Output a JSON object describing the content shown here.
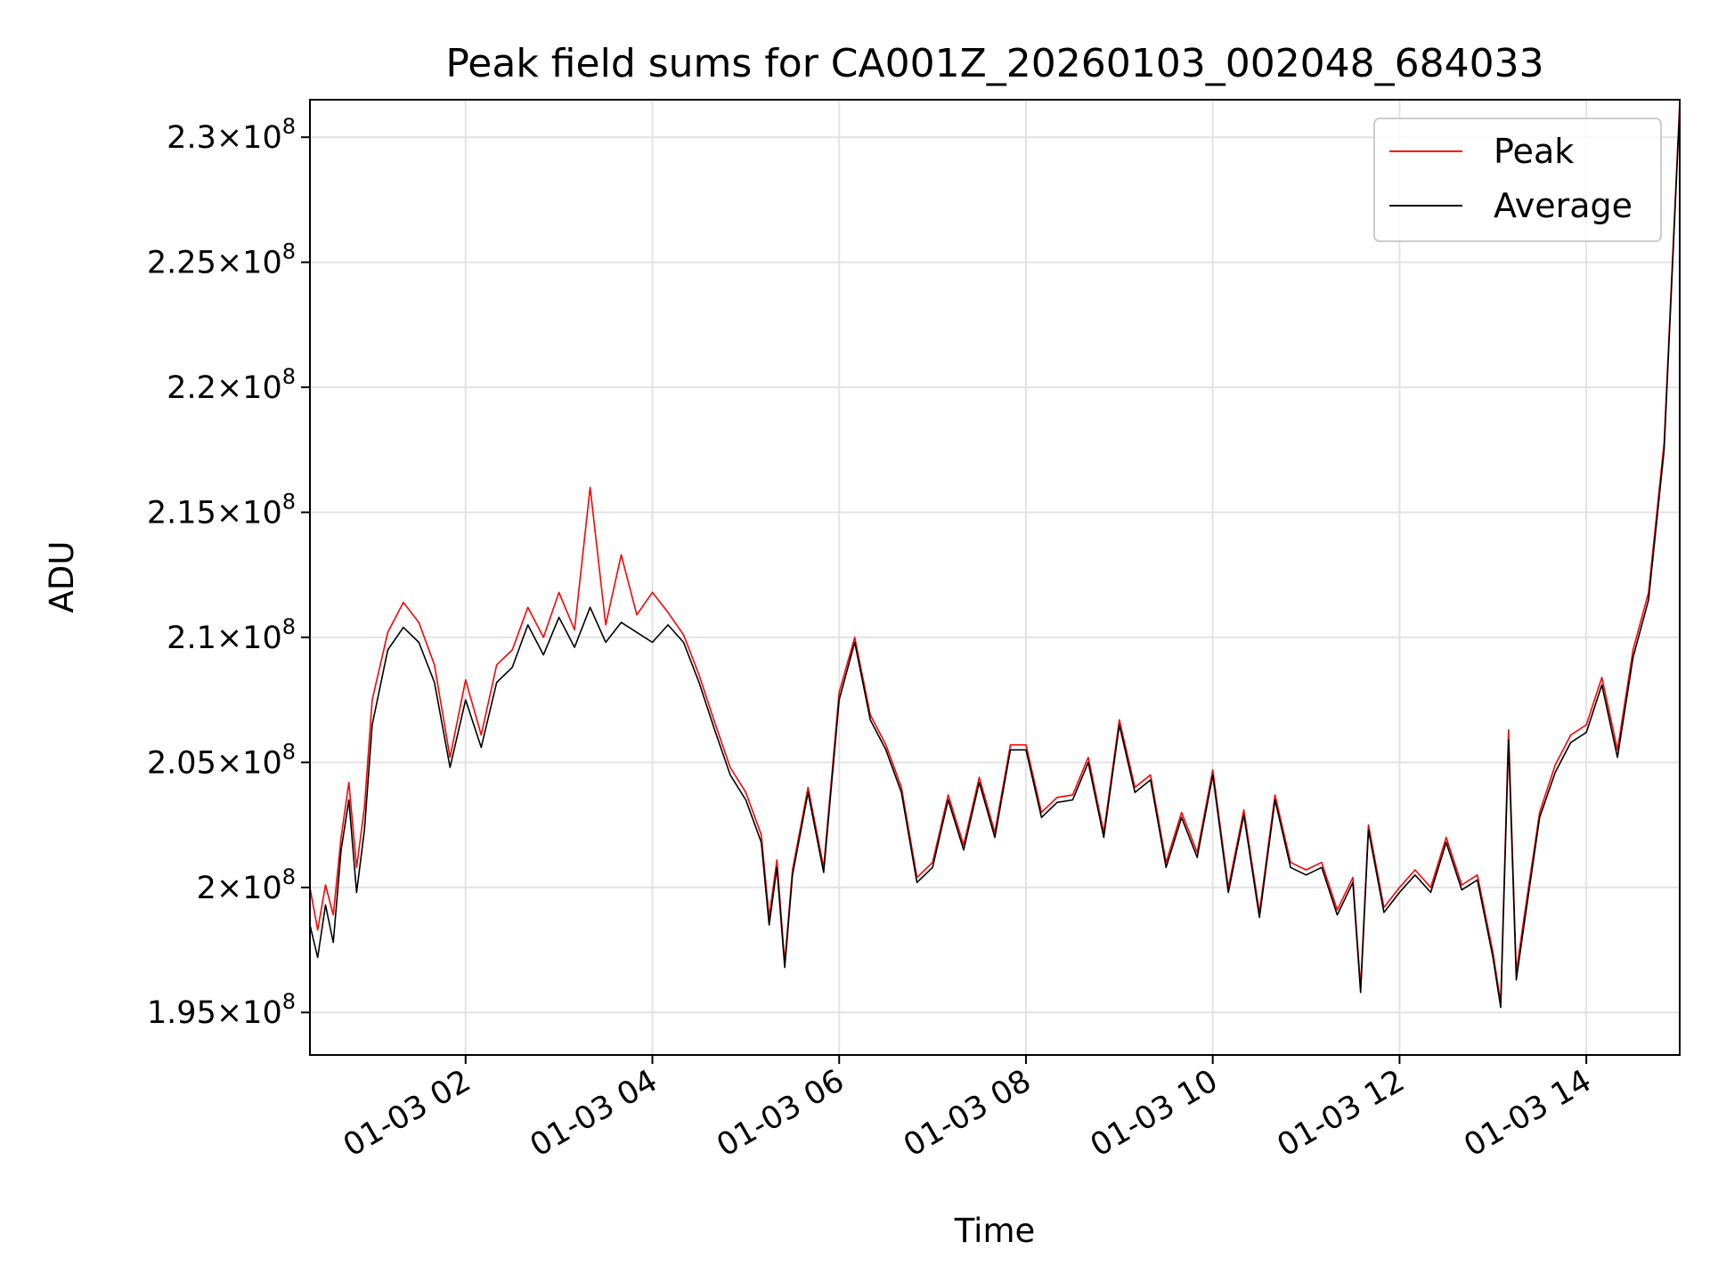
{
  "chart_data": {
    "type": "line",
    "title": "Peak field sums for CA001Z_20260103_002048_684033",
    "xlabel": "Time",
    "ylabel": "ADU",
    "xlim": [
      "01-03 00:20",
      "01-03 15:00"
    ],
    "ylim": [
      193300000,
      231500000
    ],
    "grid": true,
    "legend_position": "top-right",
    "x_ticks": [
      "01-03 02",
      "01-03 04",
      "01-03 06",
      "01-03 08",
      "01-03 10",
      "01-03 12",
      "01-03 14"
    ],
    "y_ticks": [
      {
        "value": 195000000,
        "mantissa": "1.95"
      },
      {
        "value": 200000000,
        "mantissa": "2"
      },
      {
        "value": 205000000,
        "mantissa": "2.05"
      },
      {
        "value": 210000000,
        "mantissa": "2.1"
      },
      {
        "value": 215000000,
        "mantissa": "2.15"
      },
      {
        "value": 220000000,
        "mantissa": "2.2"
      },
      {
        "value": 225000000,
        "mantissa": "2.25"
      },
      {
        "value": 230000000,
        "mantissa": "2.3"
      }
    ],
    "y_tick_exponent": "8",
    "series": [
      {
        "name": "Peak",
        "color": "#ff0000"
      },
      {
        "name": "Average",
        "color": "#000000"
      }
    ],
    "x": [
      "01-03 00:20",
      "01-03 00:25",
      "01-03 00:30",
      "01-03 00:35",
      "01-03 00:40",
      "01-03 00:45",
      "01-03 00:50",
      "01-03 00:55",
      "01-03 01:00",
      "01-03 01:10",
      "01-03 01:20",
      "01-03 01:30",
      "01-03 01:40",
      "01-03 01:50",
      "01-03 02:00",
      "01-03 02:10",
      "01-03 02:20",
      "01-03 02:30",
      "01-03 02:40",
      "01-03 02:50",
      "01-03 03:00",
      "01-03 03:10",
      "01-03 03:20",
      "01-03 03:30",
      "01-03 03:40",
      "01-03 03:50",
      "01-03 04:00",
      "01-03 04:10",
      "01-03 04:20",
      "01-03 04:30",
      "01-03 04:40",
      "01-03 04:50",
      "01-03 05:00",
      "01-03 05:10",
      "01-03 05:15",
      "01-03 05:20",
      "01-03 05:25",
      "01-03 05:30",
      "01-03 05:40",
      "01-03 05:50",
      "01-03 06:00",
      "01-03 06:10",
      "01-03 06:20",
      "01-03 06:30",
      "01-03 06:40",
      "01-03 06:50",
      "01-03 07:00",
      "01-03 07:10",
      "01-03 07:20",
      "01-03 07:30",
      "01-03 07:40",
      "01-03 07:50",
      "01-03 08:00",
      "01-03 08:10",
      "01-03 08:20",
      "01-03 08:30",
      "01-03 08:40",
      "01-03 08:50",
      "01-03 09:00",
      "01-03 09:10",
      "01-03 09:20",
      "01-03 09:30",
      "01-03 09:40",
      "01-03 09:50",
      "01-03 10:00",
      "01-03 10:10",
      "01-03 10:20",
      "01-03 10:30",
      "01-03 10:40",
      "01-03 10:50",
      "01-03 11:00",
      "01-03 11:10",
      "01-03 11:20",
      "01-03 11:30",
      "01-03 11:35",
      "01-03 11:40",
      "01-03 11:50",
      "01-03 12:00",
      "01-03 12:10",
      "01-03 12:20",
      "01-03 12:30",
      "01-03 12:40",
      "01-03 12:50",
      "01-03 13:00",
      "01-03 13:05",
      "01-03 13:10",
      "01-03 13:15",
      "01-03 13:20",
      "01-03 13:30",
      "01-03 13:40",
      "01-03 13:50",
      "01-03 14:00",
      "01-03 14:10",
      "01-03 14:20",
      "01-03 14:30",
      "01-03 14:40",
      "01-03 14:50",
      "01-03 15:00"
    ],
    "values": [
      198500000,
      197200000,
      199300000,
      197800000,
      201500000,
      203500000,
      199800000,
      202300000,
      206500000,
      209500000,
      210400000,
      209800000,
      208200000,
      204800000,
      207500000,
      205600000,
      208200000,
      208800000,
      210500000,
      209300000,
      210800000,
      209600000,
      211200000,
      209800000,
      210600000,
      210200000,
      209800000,
      210500000,
      209800000,
      208200000,
      206300000,
      204500000,
      203500000,
      201800000,
      198500000,
      200800000,
      196800000,
      200500000,
      203800000,
      200600000,
      207500000,
      209800000,
      206700000,
      205500000,
      203800000,
      200200000,
      200800000,
      203500000,
      201500000,
      204200000,
      202000000,
      205500000,
      205500000,
      202800000,
      203400000,
      203500000,
      205000000,
      202000000,
      206500000,
      203800000,
      204300000,
      200800000,
      202800000,
      201200000,
      204500000,
      199800000,
      202900000,
      198800000,
      203500000,
      200800000,
      200500000,
      200800000,
      198900000,
      200200000,
      195800000,
      202300000,
      199000000,
      199800000,
      200500000,
      199800000,
      201800000,
      199900000,
      200300000,
      197200000,
      195200000,
      205900000,
      196300000,
      198500000,
      202800000,
      204600000,
      205800000,
      206200000,
      208100000,
      205200000,
      209200000,
      211500000,
      217500000,
      231200000
    ],
    "peak_values": [
      200000000,
      198300000,
      200100000,
      198900000,
      202000000,
      204200000,
      200800000,
      203200000,
      207500000,
      210200000,
      211400000,
      210600000,
      208900000,
      205200000,
      208300000,
      206100000,
      208900000,
      209500000,
      211200000,
      210000000,
      211800000,
      210300000,
      216000000,
      210500000,
      213300000,
      210900000,
      211800000,
      211000000,
      210100000,
      208500000,
      206600000,
      204800000,
      203800000,
      202100000,
      198800000,
      201100000,
      197000000,
      200700000,
      204000000,
      200800000,
      207800000,
      210000000,
      206900000,
      205700000,
      204000000,
      200400000,
      201000000,
      203700000,
      201700000,
      204400000,
      202200000,
      205700000,
      205700000,
      203000000,
      203600000,
      203700000,
      205200000,
      202200000,
      206700000,
      204000000,
      204500000,
      201000000,
      203000000,
      201400000,
      204700000,
      200000000,
      203100000,
      199000000,
      203700000,
      201000000,
      200700000,
      201000000,
      199100000,
      200400000,
      196000000,
      202500000,
      199200000,
      200000000,
      200700000,
      200000000,
      202000000,
      200100000,
      200500000,
      197400000,
      195400000,
      206300000,
      196600000,
      198800000,
      203000000,
      204900000,
      206100000,
      206500000,
      208400000,
      205500000,
      209500000,
      211800000,
      217800000,
      231400000
    ]
  }
}
